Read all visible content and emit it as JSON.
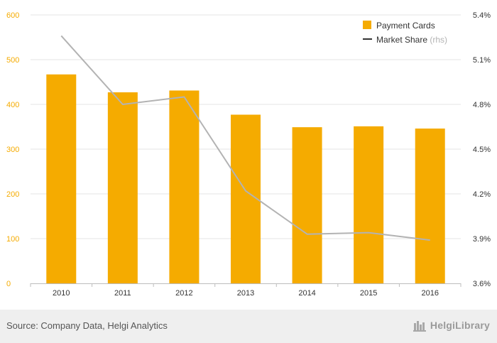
{
  "chart_data": {
    "type": "bar",
    "categories": [
      "2010",
      "2011",
      "2012",
      "2013",
      "2014",
      "2015",
      "2016"
    ],
    "series": [
      {
        "name": "Payment Cards",
        "type": "bar",
        "axis": "left",
        "values": [
          467,
          427,
          431,
          377,
          349,
          351,
          346
        ],
        "color": "#f5ab00"
      },
      {
        "name": "Market Share",
        "type": "line",
        "axis": "right",
        "values": [
          5.26,
          4.8,
          4.85,
          4.22,
          3.93,
          3.94,
          3.89
        ],
        "color": "#b3b3b3"
      }
    ],
    "y_left": {
      "lim": [
        0,
        600
      ],
      "ticks": [
        "0",
        "100",
        "200",
        "300",
        "400",
        "500",
        "600"
      ],
      "color": "#f5ab00"
    },
    "y_right": {
      "lim": [
        3.6,
        5.4
      ],
      "ticks": [
        "3.6%",
        "3.9%",
        "4.2%",
        "4.5%",
        "4.8%",
        "5.1%",
        "5.4%"
      ],
      "color": "#333333"
    },
    "legend": {
      "position": "top-right",
      "bar_label": "Payment Cards",
      "line_label": "Market Share",
      "line_suffix": "(rhs)"
    },
    "grid": true
  },
  "footer": {
    "source": "Source: Company Data, Helgi Analytics",
    "logo_text": "HelgiLibrary"
  }
}
